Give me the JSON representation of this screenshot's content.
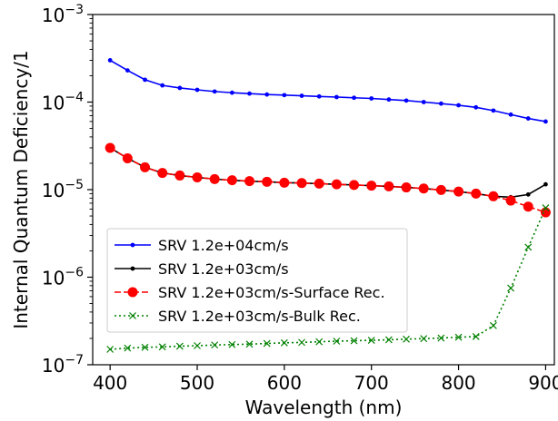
{
  "chart_data": {
    "type": "line",
    "title": "",
    "xlabel": "Wavelength (nm)",
    "ylabel": "Internal Quantum Deficiency/1",
    "xlim": [
      380,
      910
    ],
    "ylim": [
      1e-07,
      0.001
    ],
    "yscale": "log",
    "x_ticks": [
      400,
      500,
      600,
      700,
      800,
      900
    ],
    "x_tick_labels": [
      "400",
      "500",
      "600",
      "700",
      "800",
      "900"
    ],
    "y_ticks": [
      {
        "value": 1e-07,
        "base": "10",
        "exp": "−7"
      },
      {
        "value": 1e-06,
        "base": "10",
        "exp": "−6"
      },
      {
        "value": 1e-05,
        "base": "10",
        "exp": "−5"
      },
      {
        "value": 0.0001,
        "base": "10",
        "exp": "−4"
      },
      {
        "value": 0.001,
        "base": "10",
        "exp": "−3"
      }
    ],
    "grid": false,
    "legend_position": "lower-left",
    "x": [
      400,
      420,
      440,
      460,
      480,
      500,
      520,
      540,
      560,
      580,
      600,
      620,
      640,
      660,
      680,
      700,
      720,
      740,
      760,
      780,
      800,
      820,
      840,
      860,
      880,
      900
    ],
    "series": [
      {
        "name": "SRV 1.2e+04cm/s",
        "color": "#0000ff",
        "line_style": "solid",
        "marker": "dot",
        "values": [
          0.0003,
          0.00023,
          0.00018,
          0.000155,
          0.000145,
          0.000138,
          0.000132,
          0.000128,
          0.000125,
          0.000122,
          0.00012,
          0.000118,
          0.000116,
          0.000114,
          0.000112,
          0.00011,
          0.000107,
          0.000104,
          0.0001,
          9.6e-05,
          9.2e-05,
          8.7e-05,
          8e-05,
          7.2e-05,
          6.5e-05,
          6e-05
        ]
      },
      {
        "name": "SRV 1.2e+03cm/s",
        "color": "#000000",
        "line_style": "solid",
        "marker": "dot",
        "values": [
          3e-05,
          2.28e-05,
          1.8e-05,
          1.55e-05,
          1.45e-05,
          1.38e-05,
          1.32e-05,
          1.28e-05,
          1.25e-05,
          1.23e-05,
          1.2e-05,
          1.19e-05,
          1.17e-05,
          1.15e-05,
          1.13e-05,
          1.11e-05,
          1.09e-05,
          1.06e-05,
          1.03e-05,
          9.9e-06,
          9.5e-06,
          9e-06,
          8.4e-06,
          8.2e-06,
          8.8e-06,
          1.15e-05
        ]
      },
      {
        "name": "SRV 1.2e+03cm/s-Surface Rec.",
        "color": "#ff0000",
        "line_style": "dashed",
        "marker": "circle",
        "values": [
          3e-05,
          2.28e-05,
          1.8e-05,
          1.55e-05,
          1.45e-05,
          1.38e-05,
          1.32e-05,
          1.28e-05,
          1.25e-05,
          1.23e-05,
          1.2e-05,
          1.19e-05,
          1.17e-05,
          1.15e-05,
          1.13e-05,
          1.11e-05,
          1.09e-05,
          1.06e-05,
          1.03e-05,
          9.9e-06,
          9.5e-06,
          9e-06,
          8.4e-06,
          7.5e-06,
          6.4e-06,
          5.5e-06
        ]
      },
      {
        "name": "SRV 1.2e+03cm/s-Bulk Rec.",
        "color": "#008000",
        "line_style": "dotted",
        "marker": "x",
        "values": [
          1.5e-07,
          1.55e-07,
          1.58e-07,
          1.6e-07,
          1.63e-07,
          1.65e-07,
          1.68e-07,
          1.7e-07,
          1.72e-07,
          1.75e-07,
          1.78e-07,
          1.8e-07,
          1.83e-07,
          1.86e-07,
          1.88e-07,
          1.9e-07,
          1.93e-07,
          1.96e-07,
          1.99e-07,
          2.02e-07,
          2.06e-07,
          2.1e-07,
          2.8e-07,
          7.5e-07,
          2.2e-06,
          6.2e-06
        ]
      }
    ]
  }
}
